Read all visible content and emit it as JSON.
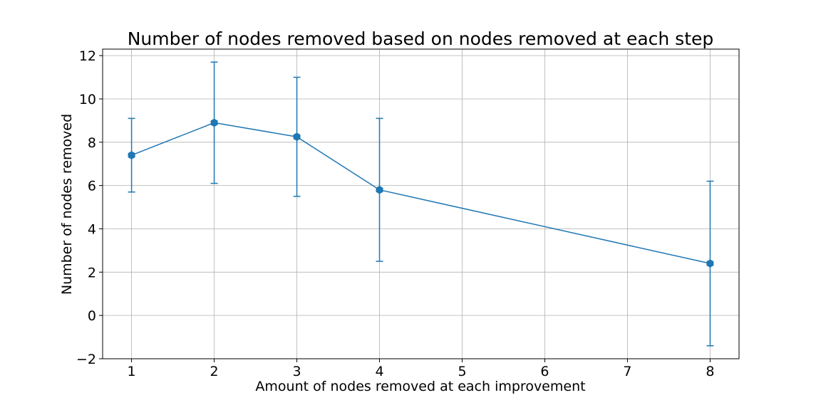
{
  "chart_data": {
    "type": "line",
    "title": "Number of nodes removed based on nodes removed at each step",
    "xlabel": "Amount of nodes removed at each improvement",
    "ylabel": "Number of nodes removed",
    "xlim": [
      0.65,
      8.35
    ],
    "ylim": [
      -2,
      12.3
    ],
    "xticks": [
      1,
      2,
      3,
      4,
      5,
      6,
      7,
      8
    ],
    "yticks": [
      -2,
      0,
      2,
      4,
      6,
      8,
      10,
      12
    ],
    "ytick_labels": [
      "−2",
      "0",
      "2",
      "4",
      "6",
      "8",
      "10",
      "12"
    ],
    "grid": true,
    "series": [
      {
        "x": [
          1,
          2,
          3,
          4,
          8
        ],
        "y": [
          7.4,
          8.9,
          8.25,
          5.8,
          2.4
        ],
        "yerr": [
          1.7,
          2.8,
          2.75,
          3.3,
          3.8
        ],
        "color": "#1f77b4",
        "marker": "hexagon"
      }
    ]
  }
}
